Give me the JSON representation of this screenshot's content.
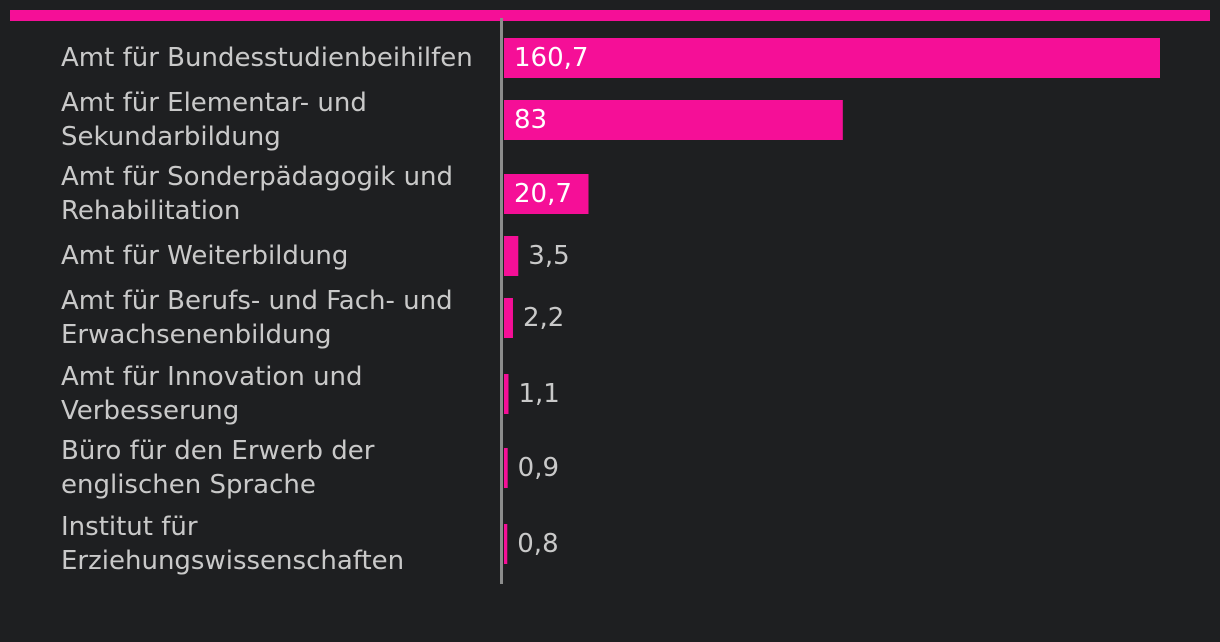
{
  "colors": {
    "background": "#1e1f21",
    "bar": "#f50f97",
    "top_rule": "#f50f97",
    "axis": "#8c8c8c",
    "label_text": "#c9c9c9",
    "value_inside": "#ffffff",
    "value_outside": "#c9c9c9"
  },
  "chart_data": {
    "type": "bar",
    "orientation": "horizontal",
    "title": "",
    "xlabel": "",
    "ylabel": "",
    "xlim": [
      0,
      160.7
    ],
    "grid": false,
    "legend": "none",
    "categories": [
      [
        "Amt für Bundesstudienbeihilfen"
      ],
      [
        "Amt für Elementar- und",
        "Sekundarbildung"
      ],
      [
        "Amt für Sonderpädagogik und",
        "Rehabilitation"
      ],
      [
        "Amt für Weiterbildung"
      ],
      [
        "Amt für Berufs- und Fach- und",
        "Erwachsenenbildung"
      ],
      [
        "Amt für Innovation und",
        "Verbesserung"
      ],
      [
        "Büro für den Erwerb der",
        "englischen Sprache"
      ],
      [
        "Institut für",
        "Erziehungswissenschaften"
      ]
    ],
    "values": [
      160.7,
      83,
      20.7,
      3.5,
      2.2,
      1.1,
      0.9,
      0.8
    ],
    "value_labels": [
      "160,7",
      "83",
      "20,7",
      "3,5",
      "2,2",
      "1,1",
      "0,9",
      "0,8"
    ]
  }
}
